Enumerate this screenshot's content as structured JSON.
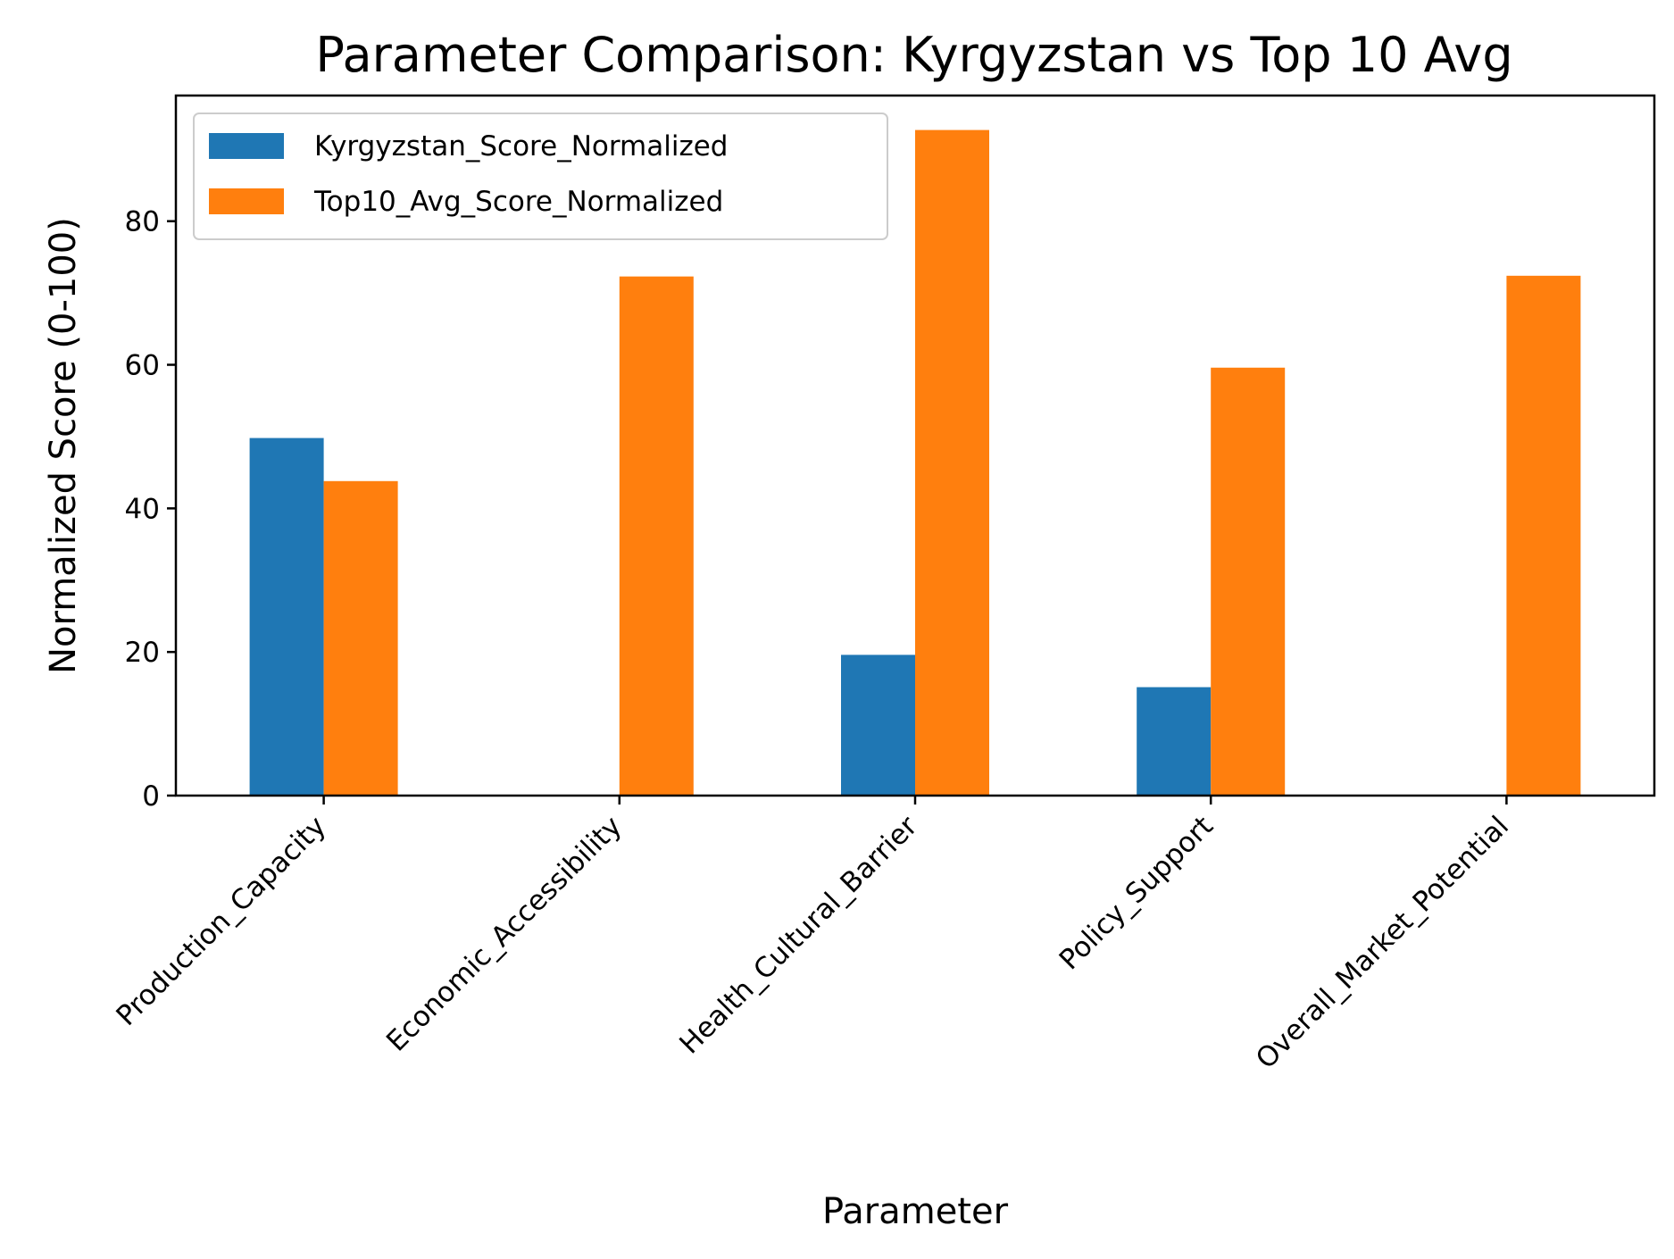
{
  "chart_data": {
    "type": "bar",
    "title": "Parameter Comparison: Kyrgyzstan vs Top 10 Avg",
    "xlabel": "Parameter",
    "ylabel": "Normalized Score (0-100)",
    "categories": [
      "Production_Capacity",
      "Economic_Accessibility",
      "Health_Cultural_Barrier",
      "Policy_Support",
      "Overall_Market_Potential"
    ],
    "series": [
      {
        "name": "Kyrgyzstan_Score_Normalized",
        "color": "#1f77b4",
        "values": [
          49.8,
          0,
          19.6,
          15.1,
          0
        ]
      },
      {
        "name": "Top10_Avg_Score_Normalized",
        "color": "#ff7f0e",
        "values": [
          43.8,
          72.3,
          92.7,
          59.6,
          72.4
        ]
      }
    ],
    "ylim": [
      0,
      97.5
    ],
    "yticks": [
      0,
      20,
      40,
      60,
      80
    ],
    "grid": false,
    "legend_position": "top-left"
  }
}
